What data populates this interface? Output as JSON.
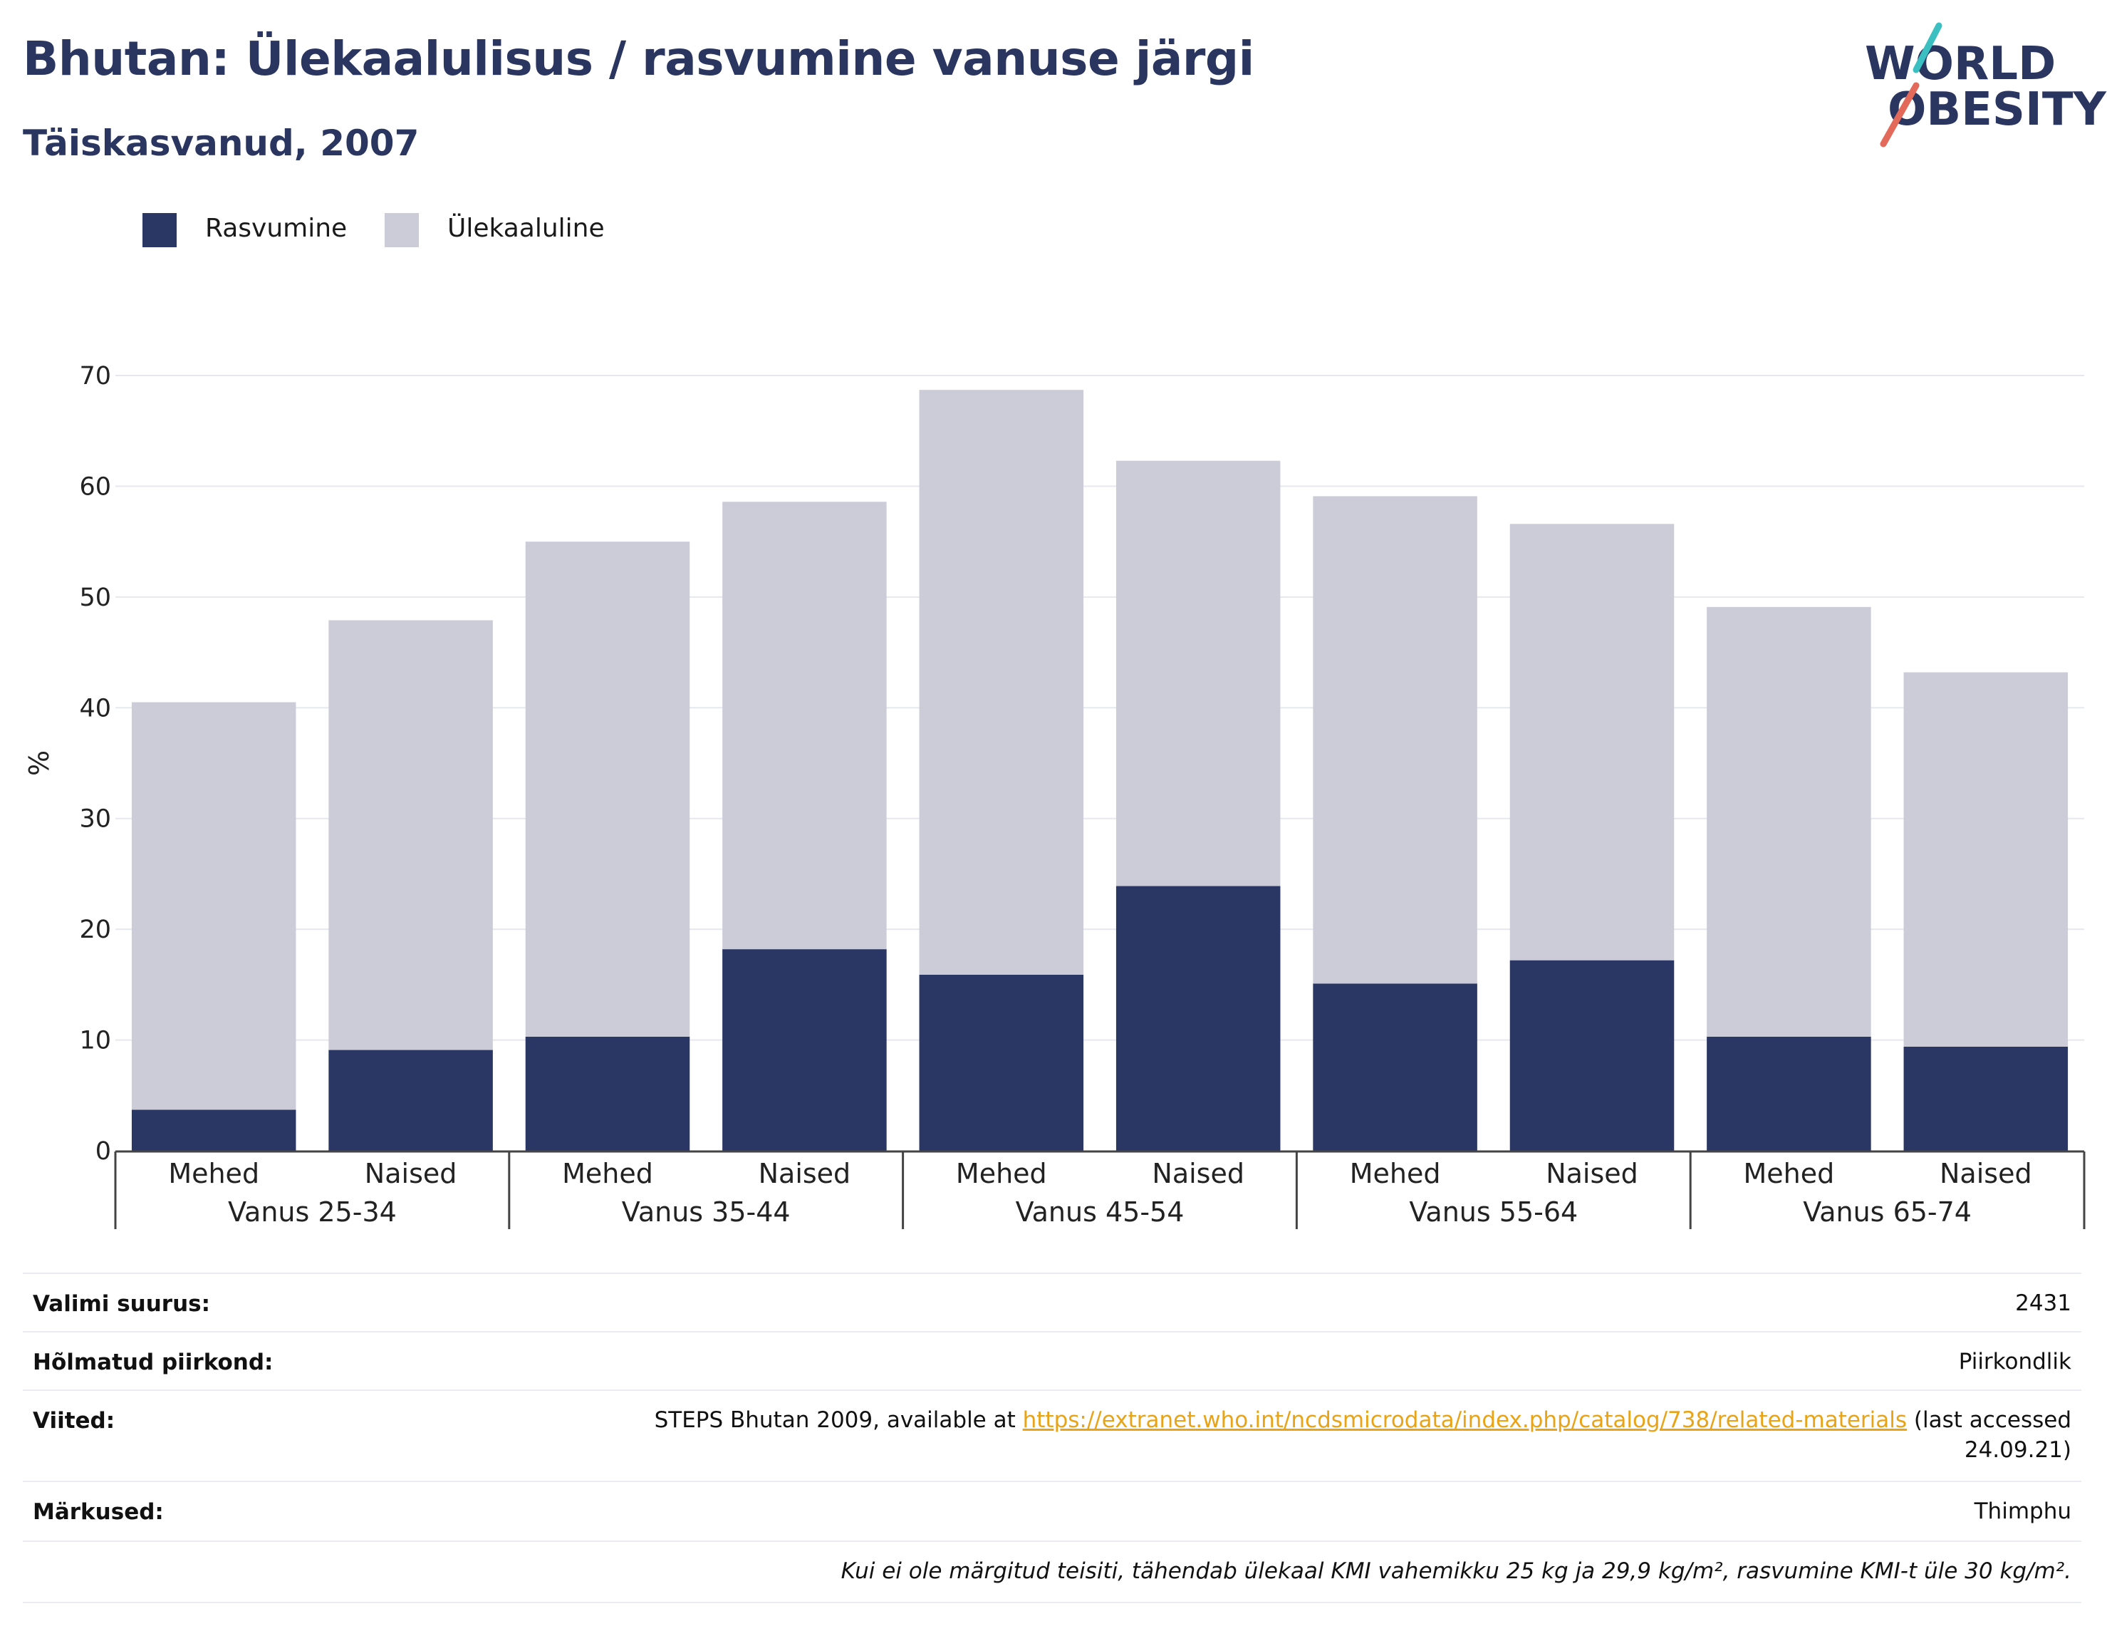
{
  "title": "Bhutan: Ülekaalulisus / rasvumine vanuse järgi",
  "subtitle": "Täiskasvanud, 2007",
  "logo": {
    "line1": "WORLD",
    "line2": "OBESITY"
  },
  "legend": [
    {
      "label": "Rasvumine",
      "color": "#2a3663"
    },
    {
      "label": "Ülekaaluline",
      "color": "#cbccd8"
    }
  ],
  "chart_data": {
    "type": "bar",
    "stacked": true,
    "ylabel": "%",
    "xlabel": "",
    "ylim": [
      0,
      70
    ],
    "yticks": [
      0,
      10,
      20,
      30,
      40,
      50,
      60,
      70
    ],
    "grid": true,
    "legend_position": "top-left",
    "categories": [
      "Mehed",
      "Naised",
      "Mehed",
      "Naised",
      "Mehed",
      "Naised",
      "Mehed",
      "Naised",
      "Mehed",
      "Naised"
    ],
    "groups": [
      "Vanus 25-34",
      "Vanus 35-44",
      "Vanus 45-54",
      "Vanus 55-64",
      "Vanus 65-74"
    ],
    "series": [
      {
        "name": "Rasvumine",
        "color": "#2a3663",
        "values": [
          3.7,
          9.1,
          10.3,
          18.2,
          15.9,
          23.9,
          15.1,
          17.2,
          10.3,
          9.4
        ]
      },
      {
        "name": "Ülekaaluline",
        "color": "#cbccd8",
        "values": [
          36.8,
          38.8,
          44.7,
          40.4,
          52.8,
          38.4,
          44.0,
          39.4,
          38.8,
          33.8
        ]
      }
    ]
  },
  "info": {
    "sample_label": "Valimi suurus:",
    "sample_value": "2431",
    "region_label": "Hõlmatud piirkond:",
    "region_value": "Piirkondlik",
    "refs_label": "Viited:",
    "refs_prefix": "STEPS Bhutan 2009, available at",
    "refs_link": "https://extranet.who.int/ncdsmicrodata/index.php/catalog/738/related-materials",
    "refs_suffix": "(last accessed",
    "refs_date": "24.09.21)",
    "notes_label": "Märkused:",
    "notes_value": "Thimphu",
    "footnote": "Kui ei ole märgitud teisiti, tähendab ülekaal KMI vahemikku 25 kg ja 29,9 kg/m², rasvumine KMI-t üle 30 kg/m²."
  }
}
